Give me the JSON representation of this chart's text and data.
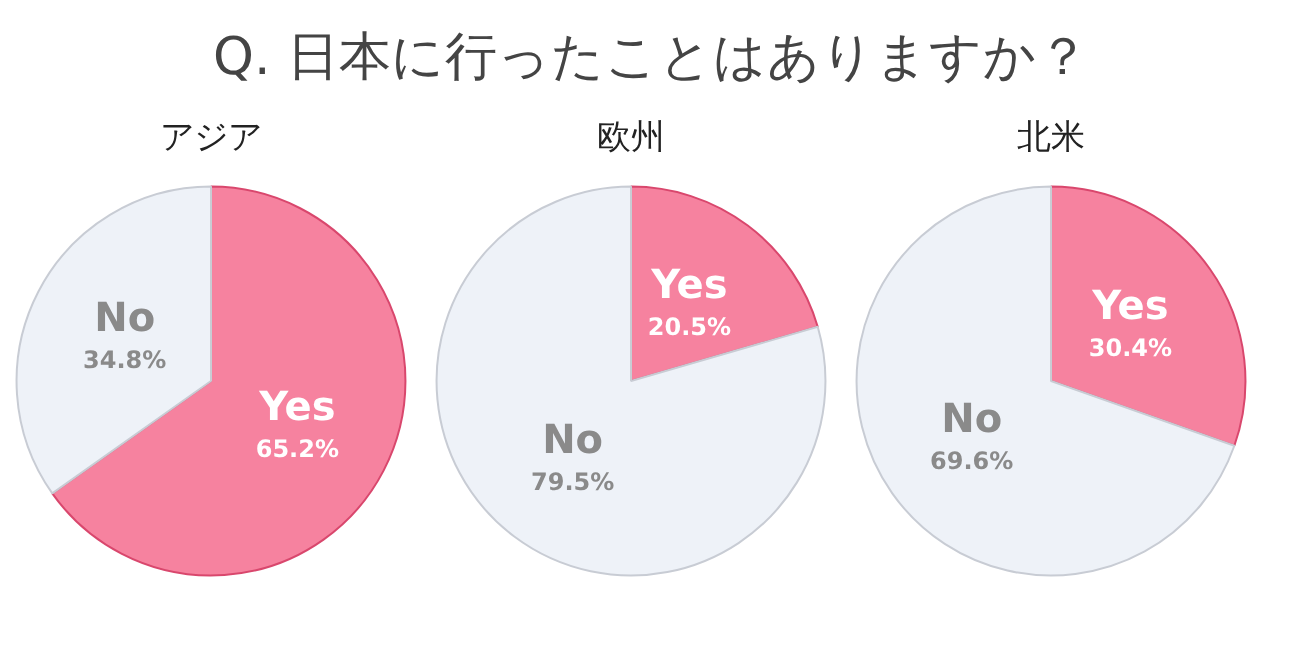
{
  "chart_data": [
    {
      "type": "other",
      "title": "Q. 日本に行ったことはありますか？"
    },
    {
      "type": "pie",
      "title": "アジア",
      "categories": [
        "Yes",
        "No"
      ],
      "values": [
        65.2,
        34.8
      ],
      "value_labels": [
        "65.2%",
        "34.8%"
      ],
      "colors": [
        "#f6829f",
        "#eef2f8"
      ]
    },
    {
      "type": "pie",
      "title": "欧州",
      "categories": [
        "Yes",
        "No"
      ],
      "values": [
        20.5,
        79.5
      ],
      "value_labels": [
        "20.5%",
        "79.5%"
      ],
      "colors": [
        "#f6829f",
        "#eef2f8"
      ]
    },
    {
      "type": "pie",
      "title": "北米",
      "categories": [
        "Yes",
        "No"
      ],
      "values": [
        30.4,
        69.6
      ],
      "value_labels": [
        "30.4%",
        "69.6%"
      ],
      "colors": [
        "#f6829f",
        "#eef2f8"
      ]
    }
  ]
}
